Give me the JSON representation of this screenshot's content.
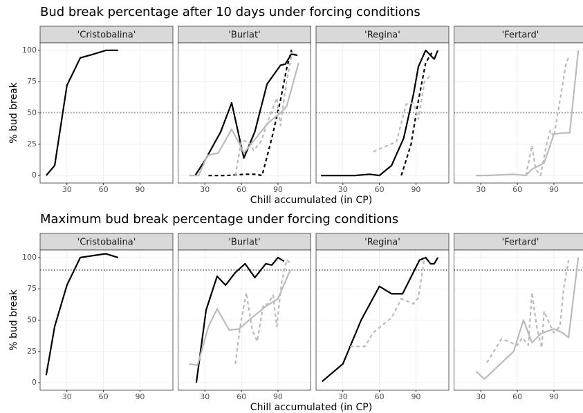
{
  "chart_data": [
    {
      "type": "line",
      "title": "Bud break percentage after 10 days under forcing conditions",
      "xlabel": "Chill accumulated (in CP)",
      "ylabel": "% bud break",
      "xlim": [
        8,
        117
      ],
      "ylim": [
        -6,
        106
      ],
      "xticks": [
        30,
        60,
        90
      ],
      "yticks": [
        0,
        25,
        50,
        75,
        100
      ],
      "grid": true,
      "reference_line": 50,
      "panels": [
        {
          "title": "'Cristobalina'",
          "series": [
            {
              "color": "#000000",
              "dash": "solid",
              "x": [
                13,
                20,
                30,
                41,
                52,
                62,
                72
              ],
              "values": [
                0,
                8,
                72,
                94,
                97,
                100,
                100
              ]
            }
          ]
        },
        {
          "title": "'Burlat'",
          "series": [
            {
              "color": "#000000",
              "dash": "solid",
              "x": [
                22,
                30,
                43,
                52,
                62,
                71,
                81,
                92,
                96,
                101,
                106
              ],
              "values": [
                0,
                12,
                35,
                58,
                14,
                35,
                73,
                88,
                89,
                97,
                96
              ]
            },
            {
              "color": "#000000",
              "dash": "dashed",
              "x": [
                33,
                48,
                63,
                71,
                77,
                85,
                92,
                97,
                101,
                104
              ],
              "values": [
                0,
                0,
                1,
                1,
                0,
                30,
                60,
                85,
                100,
                96
              ]
            },
            {
              "color": "#bbbbbb",
              "dash": "solid",
              "x": [
                17,
                25,
                32,
                41,
                52,
                58,
                62,
                72,
                82,
                92,
                97,
                107
              ],
              "values": [
                0,
                0,
                16,
                18,
                37,
                26,
                18,
                30,
                42,
                50,
                55,
                90
              ]
            },
            {
              "color": "#bbbbbb",
              "dash": "dashed",
              "x": [
                55,
                60,
                66,
                70,
                76,
                82,
                89,
                92,
                97,
                102
              ],
              "values": [
                0,
                28,
                27,
                20,
                27,
                44,
                62,
                40,
                75,
                100
              ]
            }
          ]
        },
        {
          "title": "'Regina'",
          "series": [
            {
              "color": "#000000",
              "dash": "solid",
              "x": [
                12,
                20,
                40,
                52,
                60,
                70,
                80,
                88,
                92,
                98,
                102,
                105,
                108
              ],
              "values": [
                0,
                0,
                0,
                1,
                0,
                8,
                30,
                65,
                87,
                100,
                96,
                93,
                100
              ]
            },
            {
              "color": "#000000",
              "dash": "dashed",
              "x": [
                78,
                86,
                92,
                98,
                103
              ],
              "values": [
                0,
                25,
                60,
                90,
                98
              ]
            },
            {
              "color": "#bbbbbb",
              "dash": "dashed",
              "x": [
                55,
                62,
                74,
                82,
                88,
                92,
                97,
                102
              ],
              "values": [
                19,
                22,
                27,
                57,
                58,
                45,
                75,
                80
              ]
            }
          ]
        },
        {
          "title": "'Fertard'",
          "series": [
            {
              "color": "#bbbbbb",
              "dash": "solid",
              "x": [
                26,
                35,
                57,
                67,
                72,
                82,
                90,
                97,
                103,
                110
              ],
              "values": [
                0,
                0,
                1,
                0,
                5,
                10,
                33,
                34,
                34,
                100
              ]
            },
            {
              "color": "#bbbbbb",
              "dash": "dashed",
              "x": [
                67,
                72,
                75,
                79,
                84,
                87,
                90,
                95,
                100,
                103
              ],
              "values": [
                0,
                24,
                5,
                0,
                25,
                36,
                31,
                60,
                90,
                96
              ]
            }
          ]
        }
      ]
    },
    {
      "type": "line",
      "title": "Maximum bud break percentage under forcing conditions",
      "xlabel": "Chill accumulated (in CP)",
      "ylabel": "% bud break",
      "xlim": [
        8,
        117
      ],
      "ylim": [
        -6,
        106
      ],
      "xticks": [
        30,
        60,
        90
      ],
      "yticks": [
        0,
        25,
        50,
        75,
        100
      ],
      "grid": true,
      "reference_line": 90,
      "panels": [
        {
          "title": "'Cristobalina'",
          "series": [
            {
              "color": "#000000",
              "dash": "solid",
              "x": [
                13,
                20,
                30,
                41,
                62,
                72
              ],
              "values": [
                6,
                45,
                78,
                100,
                103,
                100
              ]
            }
          ]
        },
        {
          "title": "'Burlat'",
          "series": [
            {
              "color": "#000000",
              "dash": "solid",
              "x": [
                23,
                31,
                40,
                47,
                55,
                63,
                71,
                80,
                85,
                90,
                95
              ],
              "values": [
                0,
                58,
                85,
                78,
                88,
                95,
                84,
                95,
                94,
                100,
                97
              ]
            },
            {
              "color": "#bbbbbb",
              "dash": "solid",
              "x": [
                17,
                24,
                33,
                40,
                50,
                58,
                70,
                80,
                90,
                100
              ],
              "values": [
                15,
                14,
                45,
                59,
                42,
                43,
                53,
                61,
                67,
                90
              ]
            },
            {
              "color": "#bbbbbb",
              "dash": "dashed",
              "x": [
                55,
                59,
                64,
                69,
                73,
                78,
                82,
                86,
                89,
                93,
                97,
                101
              ],
              "values": [
                15,
                45,
                72,
                42,
                33,
                62,
                63,
                70,
                45,
                80,
                98,
                95
              ]
            }
          ]
        },
        {
          "title": "'Regina'",
          "series": [
            {
              "color": "#000000",
              "dash": "solid",
              "x": [
                13,
                30,
                45,
                60,
                70,
                79,
                93,
                98,
                102,
                105,
                108
              ],
              "values": [
                1,
                15,
                50,
                77,
                71,
                71,
                98,
                100,
                95,
                95,
                100
              ]
            },
            {
              "color": "#bbbbbb",
              "dash": "dashed",
              "x": [
                36,
                48,
                55,
                70,
                78,
                88,
                92,
                97
              ],
              "values": [
                29,
                29,
                40,
                52,
                67,
                63,
                68,
                100
              ]
            }
          ]
        },
        {
          "title": "'Fertard'",
          "series": [
            {
              "color": "#bbbbbb",
              "dash": "solid",
              "x": [
                26,
                33,
                57,
                65,
                72,
                79,
                90,
                97,
                102,
                110
              ],
              "values": [
                9,
                3,
                25,
                50,
                32,
                39,
                43,
                40,
                36,
                100
              ]
            },
            {
              "color": "#bbbbbb",
              "dash": "dashed",
              "x": [
                35,
                47,
                60,
                64,
                69,
                72,
                76,
                80,
                82,
                86,
                90,
                95,
                98,
                102
              ],
              "values": [
                16,
                35,
                30,
                36,
                30,
                72,
                44,
                28,
                57,
                48,
                40,
                45,
                75,
                98
              ]
            }
          ]
        }
      ]
    }
  ]
}
